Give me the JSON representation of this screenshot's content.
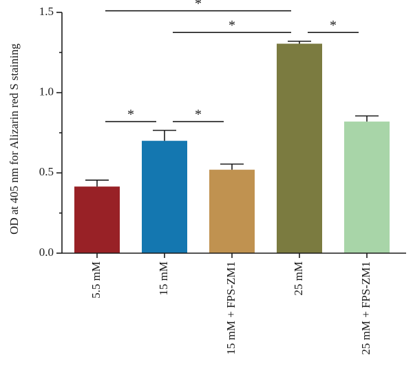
{
  "chart_data": {
    "type": "bar",
    "title": "",
    "xlabel": "",
    "ylabel": "OD at 405 nm for Alizarin red S staining",
    "ylim": [
      0,
      1.5
    ],
    "yticks": [
      "0.0",
      "0.5",
      "1.0",
      "1.5"
    ],
    "categories": [
      "5.5 mM",
      "15 mM",
      "15 mM + FPS-ZM1",
      "25 mM",
      "25 mM + FPS-ZM1"
    ],
    "values": [
      0.415,
      0.7,
      0.52,
      1.305,
      0.82
    ],
    "errors": [
      0.04,
      0.065,
      0.035,
      0.015,
      0.035
    ],
    "colors": [
      "#982126",
      "#1477b0",
      "#c09250",
      "#7b7b40",
      "#a8d5a8"
    ],
    "grid": false,
    "legend": "none",
    "significance": [
      {
        "from": 0,
        "to": 1,
        "y": 0.82,
        "label": "*"
      },
      {
        "from": 1,
        "to": 2,
        "y": 0.82,
        "label": "*"
      },
      {
        "from": 0,
        "to": 3,
        "y": 1.51,
        "label": "*"
      },
      {
        "from": 1,
        "to": 3,
        "y": 1.375,
        "label": "*"
      },
      {
        "from": 3,
        "to": 4,
        "y": 1.375,
        "label": "*"
      }
    ]
  }
}
